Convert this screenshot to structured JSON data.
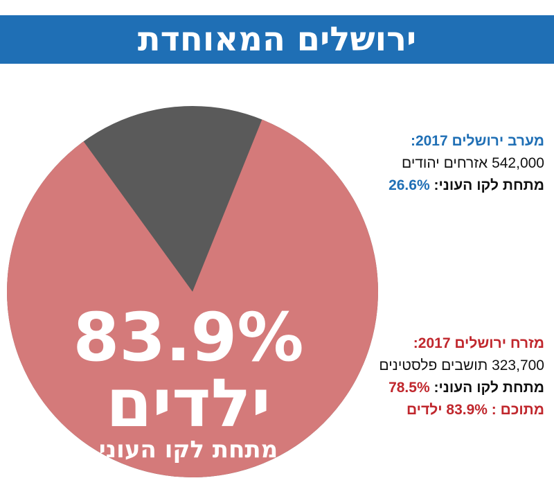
{
  "header": {
    "title": "ירושלים המאוחדת"
  },
  "chart_data": {
    "type": "pie",
    "values": [
      83.9
    ],
    "value_labels": [
      "83.9%"
    ],
    "color": "#d47a7a",
    "annotations": [
      "ילדים",
      "מתחת לקו העוני"
    ]
  },
  "panels": [
    {
      "heading": "מערב ירושלים 2017:",
      "population": "542,000 אזרחים יהודים",
      "poverty_label": "מתחת לקו העוני:",
      "poverty_value": "26.6%",
      "color": "#1f6fb5"
    },
    {
      "heading": "מזרח ירושלים 2017:",
      "population": "323,700 תושבים פלסטינים",
      "poverty_label": "מתחת לקו העוני:",
      "poverty_value": "78.5%",
      "children": "מתוכם : 83.9% ילדים",
      "color": "#c0272d"
    }
  ]
}
